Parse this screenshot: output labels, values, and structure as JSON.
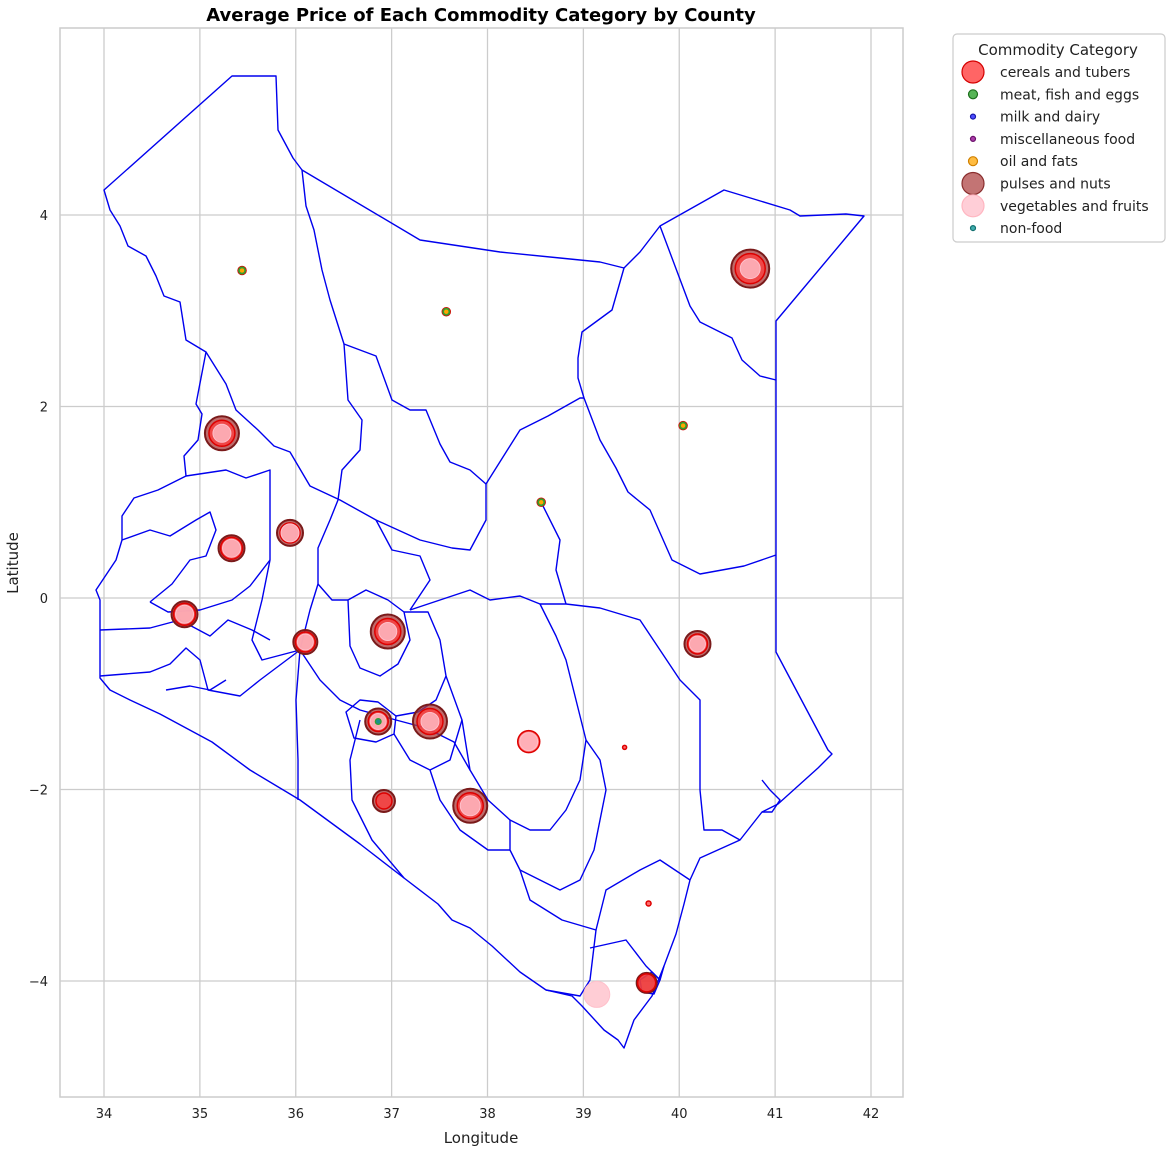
{
  "chart_data": {
    "type": "scatter",
    "title": "Average Price of Each Commodity Category by County",
    "xlabel": "Longitude",
    "ylabel": "Latitude",
    "xlim": [
      33.5,
      42.3
    ],
    "ylim": [
      -5.2,
      5.9
    ],
    "x_ticks": [
      "34",
      "35",
      "36",
      "37",
      "38",
      "39",
      "40",
      "41",
      "42"
    ],
    "y_ticks": [
      "−4",
      "−2",
      "0",
      "2",
      "4"
    ],
    "x_tick_values": [
      34,
      35,
      36,
      37,
      38,
      39,
      40,
      41,
      42
    ],
    "y_tick_values": [
      -4,
      -2,
      0,
      2,
      4
    ],
    "grid": true,
    "legend": {
      "title": "Commodity Category",
      "placement": "outside-top-right",
      "entries": [
        {
          "label": "cereals and tubers",
          "color": "#ff4a4a",
          "edge": "#d40000",
          "size": "large"
        },
        {
          "label": "meat, fish and eggs",
          "color": "#38a838",
          "edge": "#1c6e1c",
          "size": "small"
        },
        {
          "label": "milk and dairy",
          "color": "#2e2eff",
          "edge": "#1818aa",
          "size": "tiny"
        },
        {
          "label": "miscellaneous food",
          "color": "#9b1b9b",
          "edge": "#6a0f6a",
          "size": "tiny"
        },
        {
          "label": "oil and fats",
          "color": "#ffb020",
          "edge": "#d08000",
          "size": "small"
        },
        {
          "label": "pulses and nuts",
          "color": "#b85c5c",
          "edge": "#8a2e2e",
          "size": "large"
        },
        {
          "label": "vegetables and fruits",
          "color": "#ffc6d0",
          "edge": "#ffb6c1",
          "size": "large"
        },
        {
          "label": "non-food",
          "color": "#20a0a0",
          "edge": "#127070",
          "size": "tiny"
        }
      ]
    },
    "colors": {
      "cereals": "#ff3b3b",
      "cereals_edge": "#dd0000",
      "meat": "#2ea02e",
      "oil": "#ffa500",
      "pulses": "#a83a3a",
      "pulses_edge": "#7a1a1a",
      "veg": "#ffc0cb",
      "nonfood": "#1a8f8f",
      "boundary": "#0000ee"
    },
    "series": [
      {
        "name": "pulses and nuts",
        "points": [
          {
            "x": 35.23,
            "y": 1.72,
            "r": 17
          },
          {
            "x": 35.33,
            "y": 0.52,
            "r": 13
          },
          {
            "x": 35.94,
            "y": 0.68,
            "r": 13
          },
          {
            "x": 34.84,
            "y": -0.17,
            "r": 13
          },
          {
            "x": 36.1,
            "y": -0.46,
            "r": 12
          },
          {
            "x": 36.96,
            "y": -0.35,
            "r": 17
          },
          {
            "x": 36.86,
            "y": -1.29,
            "r": 13
          },
          {
            "x": 37.4,
            "y": -1.29,
            "r": 17
          },
          {
            "x": 37.82,
            "y": -2.17,
            "r": 17
          },
          {
            "x": 36.92,
            "y": -2.12,
            "r": 11
          },
          {
            "x": 40.19,
            "y": -0.48,
            "r": 13
          },
          {
            "x": 40.74,
            "y": 3.44,
            "r": 19
          },
          {
            "x": 39.66,
            "y": -4.02,
            "r": 10
          }
        ]
      },
      {
        "name": "cereals and tubers",
        "points": [
          {
            "x": 35.23,
            "y": 1.72,
            "r": 13
          },
          {
            "x": 35.33,
            "y": 0.52,
            "r": 11
          },
          {
            "x": 35.94,
            "y": 0.68,
            "r": 10
          },
          {
            "x": 34.84,
            "y": -0.17,
            "r": 11
          },
          {
            "x": 36.1,
            "y": -0.46,
            "r": 10
          },
          {
            "x": 36.96,
            "y": -0.35,
            "r": 13
          },
          {
            "x": 36.86,
            "y": -1.29,
            "r": 10
          },
          {
            "x": 37.4,
            "y": -1.29,
            "r": 13
          },
          {
            "x": 37.82,
            "y": -2.17,
            "r": 13
          },
          {
            "x": 36.92,
            "y": -2.12,
            "r": 8
          },
          {
            "x": 40.19,
            "y": -0.48,
            "r": 10
          },
          {
            "x": 40.74,
            "y": 3.44,
            "r": 15
          },
          {
            "x": 38.43,
            "y": -1.5,
            "r": 11
          },
          {
            "x": 39.66,
            "y": -4.02,
            "r": 9
          },
          {
            "x": 35.44,
            "y": 3.42,
            "r": 4
          },
          {
            "x": 37.57,
            "y": 2.99,
            "r": 4
          },
          {
            "x": 40.04,
            "y": 1.8,
            "r": 4
          },
          {
            "x": 38.56,
            "y": 1.0,
            "r": 4
          },
          {
            "x": 39.43,
            "y": -1.56,
            "r": 2
          },
          {
            "x": 39.68,
            "y": -3.19,
            "r": 2.5
          }
        ]
      },
      {
        "name": "vegetables and fruits",
        "points": [
          {
            "x": 35.23,
            "y": 1.72,
            "r": 9
          },
          {
            "x": 35.33,
            "y": 0.52,
            "r": 9
          },
          {
            "x": 35.94,
            "y": 0.68,
            "r": 9
          },
          {
            "x": 34.84,
            "y": -0.17,
            "r": 9
          },
          {
            "x": 36.1,
            "y": -0.46,
            "r": 8
          },
          {
            "x": 36.96,
            "y": -0.35,
            "r": 9
          },
          {
            "x": 36.86,
            "y": -1.29,
            "r": 8
          },
          {
            "x": 37.4,
            "y": -1.29,
            "r": 9
          },
          {
            "x": 37.82,
            "y": -2.17,
            "r": 10
          },
          {
            "x": 40.19,
            "y": -0.48,
            "r": 8
          },
          {
            "x": 40.74,
            "y": 3.44,
            "r": 10
          },
          {
            "x": 38.43,
            "y": -1.5,
            "r": 9
          },
          {
            "x": 39.14,
            "y": -4.14,
            "r": 13
          }
        ]
      },
      {
        "name": "meat, fish and eggs",
        "points": [
          {
            "x": 35.44,
            "y": 3.42,
            "r": 3.5
          },
          {
            "x": 37.57,
            "y": 2.99,
            "r": 3.5
          },
          {
            "x": 40.04,
            "y": 1.8,
            "r": 3.5
          },
          {
            "x": 38.56,
            "y": 1.0,
            "r": 3.5
          },
          {
            "x": 36.86,
            "y": -1.29,
            "r": 3
          }
        ]
      },
      {
        "name": "oil and fats",
        "points": [
          {
            "x": 35.44,
            "y": 3.42,
            "r": 2
          },
          {
            "x": 37.57,
            "y": 2.99,
            "r": 2
          },
          {
            "x": 40.04,
            "y": 1.8,
            "r": 2
          },
          {
            "x": 38.56,
            "y": 1.0,
            "r": 2
          }
        ]
      },
      {
        "name": "non-food",
        "points": [
          {
            "x": 36.86,
            "y": -1.29,
            "r": 2
          }
        ]
      }
    ]
  }
}
